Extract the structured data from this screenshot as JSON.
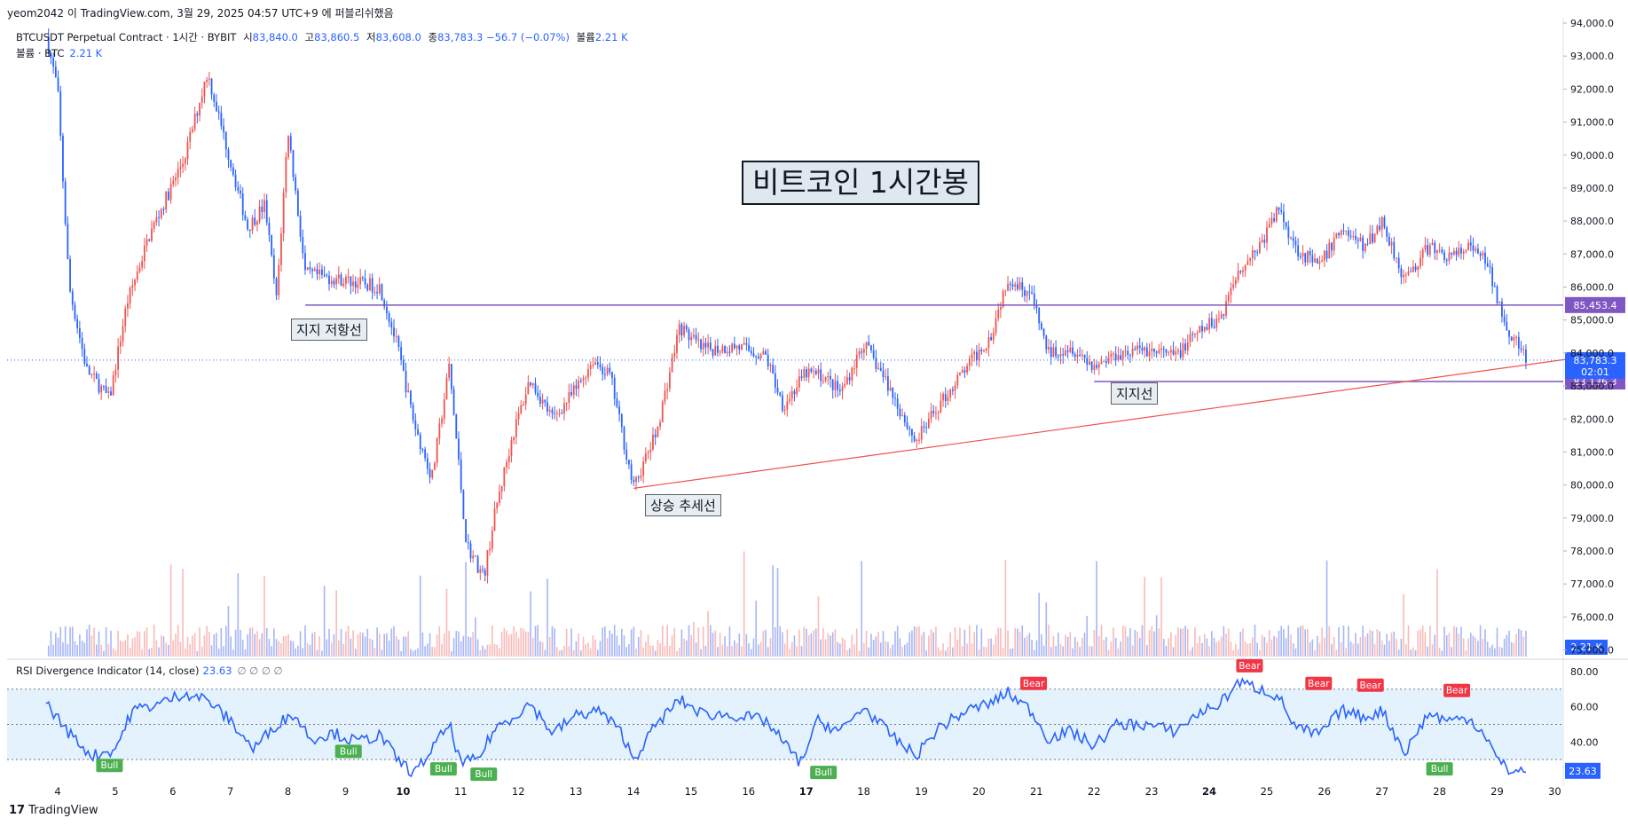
{
  "header": {
    "publish_info": "yeom2042 이 TradingView.com, 3월 29, 2025 04:57 UTC+9 에 퍼블리쉬했음"
  },
  "legend": {
    "symbol": "BTCUSDT Perpetual Contract · 1시간 · BYBIT",
    "open_label": "시",
    "open": "83,840.0",
    "high_label": "고",
    "high": "83,860.5",
    "low_label": "저",
    "low": "83,608.0",
    "close_label": "종",
    "close": "83,783.3",
    "change": "−56.7 (−0.07%)",
    "volume_label": "볼륨",
    "volume": "2.21 K",
    "volume_row_label": "볼륨 · BTC",
    "volume_row_value": "2.21 K"
  },
  "rsi_legend": {
    "name": "RSI Divergence Indicator (14, close)",
    "value": "23.63",
    "extra": "∅ ∅ ∅ ∅"
  },
  "annotations": {
    "title": "비트코인 1시간봉",
    "resistance": "지지 저항선",
    "support": "지지선",
    "trend": "상승 추세선"
  },
  "footer": {
    "logo": "17",
    "brand": "TradingView"
  },
  "colors": {
    "up": "#ef5350",
    "down": "#2962ff",
    "rsi_line": "#2962ff",
    "rsi_band": "#e3f2fd",
    "level_line": "#7e57c2",
    "trend_line": "#ef5350",
    "bull": "#4caf50",
    "bear": "#f23645",
    "price_badge": "#2962ff",
    "volume_badge": "#2962ff"
  },
  "chart_data": {
    "type": "candlestick",
    "y_axis": {
      "ticks": [
        "94,000.0",
        "93,000.0",
        "92,000.0",
        "91,000.0",
        "90,000.0",
        "89,000.0",
        "88,000.0",
        "87,000.0",
        "86,000.0",
        "85,000.0",
        "84,000.0",
        "83,000.0",
        "82,000.0",
        "81,000.0",
        "80,000.0",
        "79,000.0",
        "78,000.0",
        "77,000.0",
        "76,000.0",
        "75,000.0"
      ],
      "range": [
        74800,
        94000
      ]
    },
    "x_axis": {
      "ticks": [
        "4",
        "5",
        "6",
        "7",
        "8",
        "9",
        "10",
        "11",
        "12",
        "13",
        "14",
        "15",
        "16",
        "17",
        "18",
        "19",
        "20",
        "21",
        "22",
        "23",
        "24",
        "25",
        "26",
        "27",
        "28",
        "29",
        "30"
      ],
      "bold_ticks": [
        "10",
        "17",
        "24"
      ]
    },
    "price_path": [
      {
        "day": 3.8,
        "price": 93600
      },
      {
        "day": 4.0,
        "price": 92000
      },
      {
        "day": 4.2,
        "price": 86000
      },
      {
        "day": 4.5,
        "price": 83500
      },
      {
        "day": 4.9,
        "price": 82600
      },
      {
        "day": 5.2,
        "price": 85500
      },
      {
        "day": 5.6,
        "price": 87600
      },
      {
        "day": 6.2,
        "price": 89900
      },
      {
        "day": 6.6,
        "price": 92500
      },
      {
        "day": 7.0,
        "price": 89800
      },
      {
        "day": 7.3,
        "price": 87800
      },
      {
        "day": 7.6,
        "price": 88500
      },
      {
        "day": 7.8,
        "price": 85600
      },
      {
        "day": 8.0,
        "price": 90800
      },
      {
        "day": 8.3,
        "price": 86400
      },
      {
        "day": 9.0,
        "price": 86200
      },
      {
        "day": 9.6,
        "price": 86000
      },
      {
        "day": 9.9,
        "price": 84200
      },
      {
        "day": 10.2,
        "price": 81800
      },
      {
        "day": 10.5,
        "price": 80200
      },
      {
        "day": 10.8,
        "price": 83600
      },
      {
        "day": 11.1,
        "price": 78200
      },
      {
        "day": 11.4,
        "price": 77200
      },
      {
        "day": 11.6,
        "price": 79200
      },
      {
        "day": 11.9,
        "price": 81500
      },
      {
        "day": 12.2,
        "price": 83200
      },
      {
        "day": 12.6,
        "price": 82000
      },
      {
        "day": 13.0,
        "price": 82900
      },
      {
        "day": 13.3,
        "price": 83800
      },
      {
        "day": 13.6,
        "price": 83300
      },
      {
        "day": 14.0,
        "price": 79900
      },
      {
        "day": 14.4,
        "price": 81600
      },
      {
        "day": 14.8,
        "price": 84800
      },
      {
        "day": 15.2,
        "price": 84100
      },
      {
        "day": 15.8,
        "price": 84200
      },
      {
        "day": 16.3,
        "price": 83900
      },
      {
        "day": 16.6,
        "price": 82400
      },
      {
        "day": 17.0,
        "price": 83400
      },
      {
        "day": 17.3,
        "price": 83300
      },
      {
        "day": 17.6,
        "price": 82800
      },
      {
        "day": 18.0,
        "price": 84300
      },
      {
        "day": 18.4,
        "price": 83100
      },
      {
        "day": 18.9,
        "price": 81300
      },
      {
        "day": 19.3,
        "price": 82400
      },
      {
        "day": 19.8,
        "price": 83600
      },
      {
        "day": 20.2,
        "price": 84500
      },
      {
        "day": 20.5,
        "price": 86300
      },
      {
        "day": 20.9,
        "price": 85800
      },
      {
        "day": 21.2,
        "price": 84000
      },
      {
        "day": 21.6,
        "price": 84200
      },
      {
        "day": 22.0,
        "price": 83600
      },
      {
        "day": 22.4,
        "price": 84000
      },
      {
        "day": 22.9,
        "price": 84100
      },
      {
        "day": 23.4,
        "price": 83900
      },
      {
        "day": 23.8,
        "price": 84600
      },
      {
        "day": 24.2,
        "price": 85100
      },
      {
        "day": 24.5,
        "price": 86500
      },
      {
        "day": 24.9,
        "price": 87300
      },
      {
        "day": 25.2,
        "price": 88400
      },
      {
        "day": 25.5,
        "price": 87200
      },
      {
        "day": 25.9,
        "price": 86600
      },
      {
        "day": 26.3,
        "price": 87800
      },
      {
        "day": 26.7,
        "price": 87200
      },
      {
        "day": 27.0,
        "price": 88000
      },
      {
        "day": 27.4,
        "price": 86200
      },
      {
        "day": 27.8,
        "price": 87200
      },
      {
        "day": 28.2,
        "price": 86900
      },
      {
        "day": 28.5,
        "price": 87200
      },
      {
        "day": 28.8,
        "price": 86800
      },
      {
        "day": 29.0,
        "price": 85700
      },
      {
        "day": 29.2,
        "price": 84700
      },
      {
        "day": 29.5,
        "price": 83800
      }
    ],
    "levels": [
      {
        "name": "resistance",
        "price": 85453.4,
        "label": "85,453.4"
      },
      {
        "name": "support",
        "price": 83136.3,
        "label": "83,136.3"
      }
    ],
    "last_price": {
      "label": "83,783.3",
      "countdown": "02:01",
      "price": 83783.3
    },
    "trend_line": [
      {
        "day": 14.0,
        "price": 79900
      },
      {
        "day": 31.0,
        "price": 84000
      }
    ],
    "volume": {
      "badge": "2.21 K",
      "ticks": [
        "2.21 K"
      ]
    },
    "rsi": {
      "ticks": [
        "80.00",
        "60.00",
        "40.00",
        "23.63"
      ],
      "band": [
        30,
        70
      ],
      "midline": 50,
      "current": "23.63",
      "path": [
        {
          "day": 3.8,
          "v": 62
        },
        {
          "day": 4.2,
          "v": 45
        },
        {
          "day": 4.6,
          "v": 32
        },
        {
          "day": 5.0,
          "v": 36
        },
        {
          "day": 5.3,
          "v": 58
        },
        {
          "day": 5.8,
          "v": 62
        },
        {
          "day": 6.2,
          "v": 68
        },
        {
          "day": 6.6,
          "v": 64
        },
        {
          "day": 7.0,
          "v": 52
        },
        {
          "day": 7.4,
          "v": 36
        },
        {
          "day": 7.8,
          "v": 50
        },
        {
          "day": 8.1,
          "v": 56
        },
        {
          "day": 8.4,
          "v": 42
        },
        {
          "day": 8.8,
          "v": 45
        },
        {
          "day": 9.2,
          "v": 40
        },
        {
          "day": 9.6,
          "v": 44
        },
        {
          "day": 9.9,
          "v": 30
        },
        {
          "day": 10.2,
          "v": 22
        },
        {
          "day": 10.5,
          "v": 36
        },
        {
          "day": 10.8,
          "v": 50
        },
        {
          "day": 11.0,
          "v": 28
        },
        {
          "day": 11.3,
          "v": 30
        },
        {
          "day": 11.6,
          "v": 48
        },
        {
          "day": 11.9,
          "v": 54
        },
        {
          "day": 12.2,
          "v": 62
        },
        {
          "day": 12.6,
          "v": 45
        },
        {
          "day": 13.0,
          "v": 55
        },
        {
          "day": 13.4,
          "v": 58
        },
        {
          "day": 13.8,
          "v": 45
        },
        {
          "day": 14.0,
          "v": 30
        },
        {
          "day": 14.4,
          "v": 50
        },
        {
          "day": 14.8,
          "v": 64
        },
        {
          "day": 15.2,
          "v": 56
        },
        {
          "day": 15.8,
          "v": 55
        },
        {
          "day": 16.3,
          "v": 52
        },
        {
          "day": 16.6,
          "v": 40
        },
        {
          "day": 16.9,
          "v": 28
        },
        {
          "day": 17.2,
          "v": 52
        },
        {
          "day": 17.6,
          "v": 46
        },
        {
          "day": 18.0,
          "v": 60
        },
        {
          "day": 18.4,
          "v": 46
        },
        {
          "day": 18.9,
          "v": 32
        },
        {
          "day": 19.3,
          "v": 48
        },
        {
          "day": 19.8,
          "v": 58
        },
        {
          "day": 20.2,
          "v": 62
        },
        {
          "day": 20.5,
          "v": 68
        },
        {
          "day": 20.9,
          "v": 58
        },
        {
          "day": 21.2,
          "v": 42
        },
        {
          "day": 21.6,
          "v": 46
        },
        {
          "day": 22.0,
          "v": 38
        },
        {
          "day": 22.4,
          "v": 50
        },
        {
          "day": 22.9,
          "v": 50
        },
        {
          "day": 23.4,
          "v": 46
        },
        {
          "day": 23.8,
          "v": 56
        },
        {
          "day": 24.2,
          "v": 62
        },
        {
          "day": 24.5,
          "v": 74
        },
        {
          "day": 24.9,
          "v": 70
        },
        {
          "day": 25.2,
          "v": 66
        },
        {
          "day": 25.5,
          "v": 48
        },
        {
          "day": 25.9,
          "v": 44
        },
        {
          "day": 26.3,
          "v": 58
        },
        {
          "day": 26.7,
          "v": 54
        },
        {
          "day": 27.0,
          "v": 58
        },
        {
          "day": 27.4,
          "v": 34
        },
        {
          "day": 27.8,
          "v": 56
        },
        {
          "day": 28.2,
          "v": 52
        },
        {
          "day": 28.5,
          "v": 54
        },
        {
          "day": 28.8,
          "v": 44
        },
        {
          "day": 29.0,
          "v": 30
        },
        {
          "day": 29.2,
          "v": 24
        },
        {
          "day": 29.5,
          "v": 23.6
        }
      ],
      "signals": [
        {
          "type": "bull",
          "label": "Bull",
          "day": 4.9,
          "v": 32
        },
        {
          "type": "bull",
          "label": "Bull",
          "day": 9.05,
          "v": 40
        },
        {
          "type": "bull",
          "label": "Bull",
          "day": 10.7,
          "v": 30
        },
        {
          "type": "bull",
          "label": "Bull",
          "day": 11.4,
          "v": 27
        },
        {
          "type": "bull",
          "label": "Bull",
          "day": 17.3,
          "v": 28
        },
        {
          "type": "bull",
          "label": "Bull",
          "day": 28.0,
          "v": 30
        },
        {
          "type": "bear",
          "label": "Bear",
          "day": 20.95,
          "v": 68
        },
        {
          "type": "bear",
          "label": "Bear",
          "day": 24.7,
          "v": 78
        },
        {
          "type": "bear",
          "label": "Bear",
          "day": 25.9,
          "v": 68
        },
        {
          "type": "bear",
          "label": "Bear",
          "day": 26.8,
          "v": 67
        },
        {
          "type": "bear",
          "label": "Bear",
          "day": 28.3,
          "v": 64
        }
      ]
    }
  }
}
